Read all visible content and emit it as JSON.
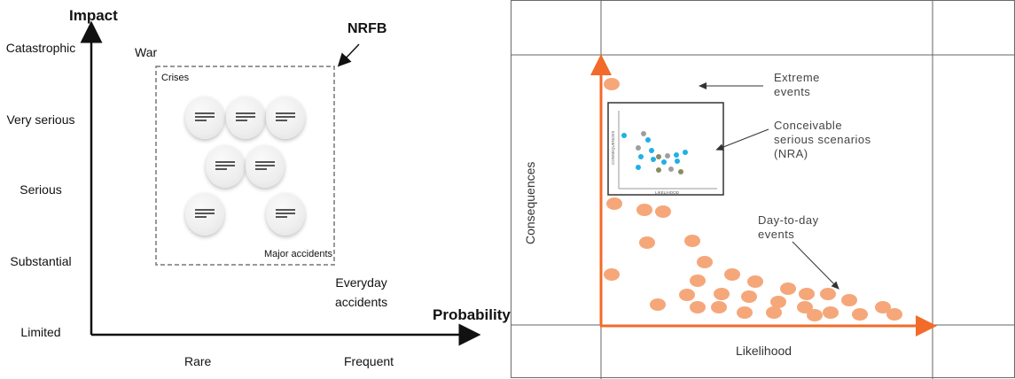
{
  "left": {
    "y_axis_title": "Impact",
    "x_axis_title": "Probability",
    "y_levels": [
      "Catastrophic",
      "Very serious",
      "Serious",
      "Substantial",
      "Limited"
    ],
    "x_levels": [
      "Rare",
      "Frequent"
    ],
    "war_label": "War",
    "crises_label": "Crises",
    "nrfb_label": "NRFB",
    "major_accidents_label": "Major accidents",
    "everyday_accidents_label": [
      "Everyday",
      "accidents"
    ],
    "bubble_count": 7
  },
  "right": {
    "y_axis_title": "Consequences",
    "x_axis_title": "Likelihood",
    "extreme_events": [
      "Extreme",
      "events"
    ],
    "conceivable": [
      "Conceivable",
      "serious scenarios",
      "(NRA)"
    ],
    "day_to_day": [
      "Day-to-day",
      "events"
    ],
    "inset_y_label": "CONSEQUENCES",
    "inset_x_label": "LIKELIHOOD",
    "colors": {
      "axis": "#f26b2a",
      "points": "#f5a77a",
      "inset_blue": "#1fb0e6",
      "inset_grey": "#9e9e9e",
      "inset_olive": "#8a8a63"
    }
  }
}
